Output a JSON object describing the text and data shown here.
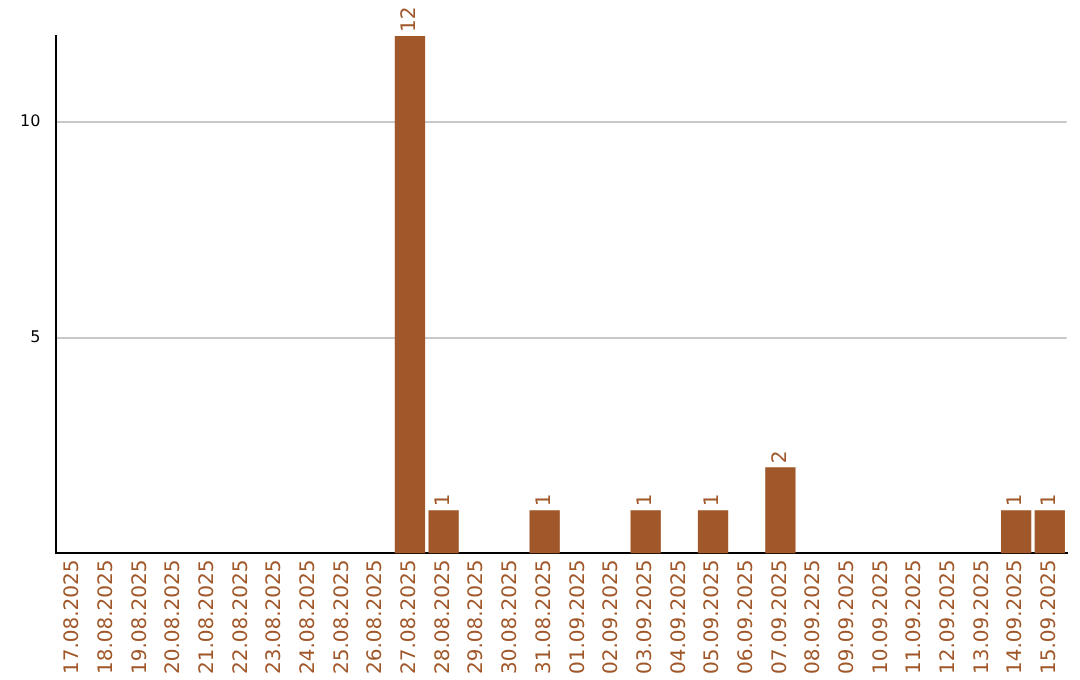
{
  "chart_data": {
    "type": "bar",
    "categories": [
      "17.08.2025",
      "18.08.2025",
      "19.08.2025",
      "20.08.2025",
      "21.08.2025",
      "22.08.2025",
      "23.08.2025",
      "24.08.2025",
      "25.08.2025",
      "26.08.2025",
      "27.08.2025",
      "28.08.2025",
      "29.08.2025",
      "30.08.2025",
      "31.08.2025",
      "01.09.2025",
      "02.09.2025",
      "03.09.2025",
      "04.09.2025",
      "05.09.2025",
      "06.09.2025",
      "07.09.2025",
      "08.09.2025",
      "09.09.2025",
      "10.09.2025",
      "11.09.2025",
      "12.09.2025",
      "13.09.2025",
      "14.09.2025",
      "15.09.2025"
    ],
    "values": [
      0,
      0,
      0,
      0,
      0,
      0,
      0,
      0,
      0,
      0,
      12,
      1,
      0,
      0,
      1,
      0,
      0,
      1,
      0,
      1,
      0,
      2,
      0,
      0,
      0,
      0,
      0,
      0,
      1,
      1
    ],
    "value_labels": [
      null,
      null,
      null,
      null,
      null,
      null,
      null,
      null,
      null,
      null,
      "12",
      "1",
      null,
      null,
      "1",
      null,
      null,
      "1",
      null,
      "1",
      null,
      "2",
      null,
      null,
      null,
      null,
      null,
      null,
      "1",
      "1"
    ],
    "color": "#a0582a",
    "ylim": [
      0,
      12
    ],
    "yticks": [
      5,
      10
    ],
    "grid": "y"
  }
}
